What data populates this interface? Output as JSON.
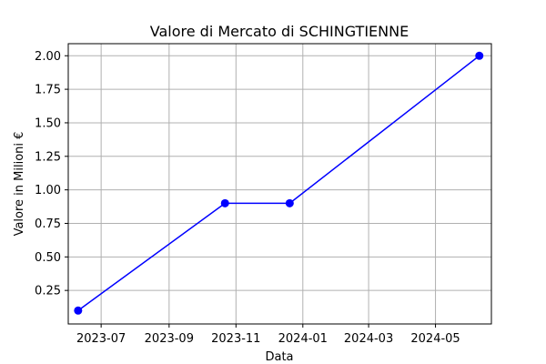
{
  "chart_data": {
    "type": "line",
    "title": "Valore di Mercato di SCHINGTIENNE",
    "xlabel": "Data",
    "ylabel": "Valore in Milioni €",
    "x_type": "date",
    "xlim": [
      "2023-06-01",
      "2024-06-21"
    ],
    "ylim": [
      0.0,
      2.09
    ],
    "x_ticks": [
      {
        "date": "2023-07-01",
        "label": "2023-07"
      },
      {
        "date": "2023-09-01",
        "label": "2023-09"
      },
      {
        "date": "2023-11-01",
        "label": "2023-11"
      },
      {
        "date": "2024-01-01",
        "label": "2024-01"
      },
      {
        "date": "2024-03-01",
        "label": "2024-03"
      },
      {
        "date": "2024-05-01",
        "label": "2024-05"
      }
    ],
    "y_ticks": [
      {
        "value": 0.25,
        "label": "0.25"
      },
      {
        "value": 0.5,
        "label": "0.50"
      },
      {
        "value": 0.75,
        "label": "0.75"
      },
      {
        "value": 1.0,
        "label": "1.00"
      },
      {
        "value": 1.25,
        "label": "1.25"
      },
      {
        "value": 1.5,
        "label": "1.50"
      },
      {
        "value": 1.75,
        "label": "1.75"
      },
      {
        "value": 2.0,
        "label": "2.00"
      }
    ],
    "grid": true,
    "series": [
      {
        "color": "#0000ff",
        "marker": "circle",
        "points": [
          {
            "x": "2023-06-10",
            "y": 0.1
          },
          {
            "x": "2023-10-22",
            "y": 0.9
          },
          {
            "x": "2023-12-20",
            "y": 0.9
          },
          {
            "x": "2024-06-10",
            "y": 2.0
          }
        ]
      }
    ]
  }
}
